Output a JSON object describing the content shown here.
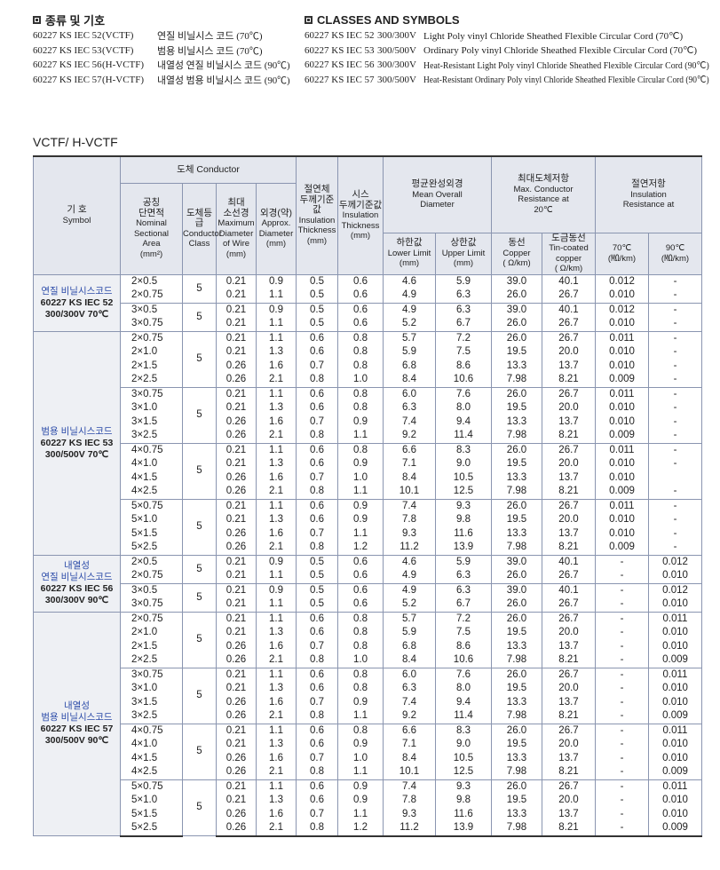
{
  "left": {
    "title": "종류 및 기호",
    "rows": [
      [
        "60227 KS IEC 52",
        "(VCTF)",
        "연질 비닐시스 코드 (70℃)"
      ],
      [
        "60227 KS IEC 53",
        "(VCTF)",
        "범용 비닐시스 코드 (70℃)"
      ],
      [
        "60227 KS IEC 56",
        "(H-VCTF)",
        "내열성 연질 비닐시스 코드 (90℃)"
      ],
      [
        "60227 KS IEC 57",
        "(H-VCTF)",
        "내열성 범용 비닐시스 코드 (90℃)"
      ]
    ]
  },
  "right": {
    "title": "CLASSES AND SYMBOLS",
    "rows": [
      [
        "60227 KS IEC 52",
        "300/300V",
        "Light Poly vinyl Chloride Sheathed Flexible Circular Cord (70℃)"
      ],
      [
        "60227 KS IEC 53",
        "300/500V",
        "Ordinary Poly vinyl Chloride Sheathed Flexible Circular Cord (70℃)"
      ],
      [
        "60227 KS IEC 56",
        "300/300V",
        "Heat-Resistant Light Poly vinyl Chloride Sheathed Flexible Circular Cord (90℃)"
      ],
      [
        "60227 KS IEC 57",
        "300/500V",
        "Heat-Resistant Ordinary Poly vinyl Chloride Sheathed Flexible Circular Cord (90℃)"
      ]
    ]
  },
  "table": {
    "caption": "VCTF/ H-VCTF",
    "header": {
      "symbol": [
        "기 호",
        "Symbol"
      ],
      "conductor": "도체 Conductor",
      "nominal": [
        "공칭",
        "단면적",
        "Nominal",
        "Sectional",
        "Area",
        "(mm²)"
      ],
      "class": [
        "도체등급",
        "Conductor",
        "Class"
      ],
      "maxwire": [
        "최대",
        "소선경",
        "Maximum",
        "Diameter",
        "of Wire",
        "(mm)"
      ],
      "approx": [
        "외경(약)",
        "Approx.",
        "Diameter",
        "(mm)"
      ],
      "insul": [
        "절연체",
        "두께기준값",
        "Insulation",
        "Thickness",
        "(mm)"
      ],
      "sheath": [
        "시스",
        "두께기준값",
        "Insulation",
        "Thickness",
        "(mm)"
      ],
      "mean": [
        "평균완성외경",
        "Mean Overall",
        "Diameter"
      ],
      "lower": [
        "하한값",
        "Lower Limit",
        "(mm)"
      ],
      "upper": [
        "상한값",
        "Upper Limit",
        "(mm)"
      ],
      "maxres": [
        "최대도체저항",
        "Max. Conductor",
        "Resistance at",
        "20℃"
      ],
      "copper": [
        "동선",
        "Copper",
        "( Ω/km)"
      ],
      "tin": [
        "도금동선",
        "Tin-coated",
        "copper",
        "( Ω/km)"
      ],
      "insres": [
        "절연저항",
        "Insulation",
        "Resistance at"
      ],
      "t70": [
        "70℃",
        "(㏁/km)"
      ],
      "t90": [
        "90℃",
        "(㏁/km)"
      ]
    },
    "groups": [
      {
        "symbol": [
          "연질 비닐시스코드",
          "60227 KS IEC 52",
          "300/300V  70℃"
        ],
        "blocks": [
          {
            "class": "5",
            "rows": [
              {
                "size": "2×0.5",
                "values": [
                  "0.21",
                  "0.9",
                  "0.5",
                  "0.6",
                  "4.6",
                  "5.9",
                  "39.0",
                  "40.1",
                  "0.012",
                  "-"
                ]
              },
              {
                "size": "2×0.75",
                "values": [
                  "0.21",
                  "1.1",
                  "0.5",
                  "0.6",
                  "4.9",
                  "6.3",
                  "26.0",
                  "26.7",
                  "0.010",
                  "-"
                ]
              }
            ]
          },
          {
            "class": "5",
            "rows": [
              {
                "size": "3×0.5",
                "values": [
                  "0.21",
                  "0.9",
                  "0.5",
                  "0.6",
                  "4.9",
                  "6.3",
                  "39.0",
                  "40.1",
                  "0.012",
                  "-"
                ]
              },
              {
                "size": "3×0.75",
                "values": [
                  "0.21",
                  "1.1",
                  "0.5",
                  "0.6",
                  "5.2",
                  "6.7",
                  "26.0",
                  "26.7",
                  "0.010",
                  "-"
                ]
              }
            ]
          }
        ]
      },
      {
        "symbol": [
          "범용 비닐시스코드",
          "60227 KS IEC 53",
          "300/500V  70℃"
        ],
        "blocks": [
          {
            "class": "5",
            "rows": [
              {
                "size": "2×0.75",
                "values": [
                  "0.21",
                  "1.1",
                  "0.6",
                  "0.8",
                  "5.7",
                  "7.2",
                  "26.0",
                  "26.7",
                  "0.011",
                  "-"
                ]
              },
              {
                "size": "2×1.0",
                "values": [
                  "0.21",
                  "1.3",
                  "0.6",
                  "0.8",
                  "5.9",
                  "7.5",
                  "19.5",
                  "20.0",
                  "0.010",
                  "-"
                ]
              },
              {
                "size": "2×1.5",
                "values": [
                  "0.26",
                  "1.6",
                  "0.7",
                  "0.8",
                  "6.8",
                  "8.6",
                  "13.3",
                  "13.7",
                  "0.010",
                  "-"
                ]
              },
              {
                "size": "2×2.5",
                "values": [
                  "0.26",
                  "2.1",
                  "0.8",
                  "1.0",
                  "8.4",
                  "10.6",
                  "7.98",
                  "8.21",
                  "0.009",
                  "-"
                ]
              }
            ]
          },
          {
            "class": "5",
            "rows": [
              {
                "size": "3×0.75",
                "values": [
                  "0.21",
                  "1.1",
                  "0.6",
                  "0.8",
                  "6.0",
                  "7.6",
                  "26.0",
                  "26.7",
                  "0.011",
                  "-"
                ]
              },
              {
                "size": "3×1.0",
                "values": [
                  "0.21",
                  "1.3",
                  "0.6",
                  "0.8",
                  "6.3",
                  "8.0",
                  "19.5",
                  "20.0",
                  "0.010",
                  "-"
                ]
              },
              {
                "size": "3×1.5",
                "values": [
                  "0.26",
                  "1.6",
                  "0.7",
                  "0.9",
                  "7.4",
                  "9.4",
                  "13.3",
                  "13.7",
                  "0.010",
                  "-"
                ]
              },
              {
                "size": "3×2.5",
                "values": [
                  "0.26",
                  "2.1",
                  "0.8",
                  "1.1",
                  "9.2",
                  "11.4",
                  "7.98",
                  "8.21",
                  "0.009",
                  "-"
                ]
              }
            ]
          },
          {
            "class": "5",
            "rows": [
              {
                "size": "4×0.75",
                "values": [
                  "0.21",
                  "1.1",
                  "0.6",
                  "0.8",
                  "6.6",
                  "8.3",
                  "26.0",
                  "26.7",
                  "0.011",
                  "-"
                ]
              },
              {
                "size": "4×1.0",
                "values": [
                  "0.21",
                  "1.3",
                  "0.6",
                  "0.9",
                  "7.1",
                  "9.0",
                  "19.5",
                  "20.0",
                  "0.010",
                  "-"
                ]
              },
              {
                "size": "4×1.5",
                "values": [
                  "0.26",
                  "1.6",
                  "0.7",
                  "1.0",
                  "8.4",
                  "10.5",
                  "13.3",
                  "13.7",
                  "0.010",
                  null
                ]
              },
              {
                "size": "4×2.5",
                "values": [
                  "0.26",
                  "2.1",
                  "0.8",
                  "1.1",
                  "10.1",
                  "12.5",
                  "7.98",
                  "8.21",
                  "0.009",
                  "-"
                ]
              }
            ]
          },
          {
            "class": "5",
            "rows": [
              {
                "size": "5×0.75",
                "values": [
                  "0.21",
                  "1.1",
                  "0.6",
                  "0.9",
                  "7.4",
                  "9.3",
                  "26.0",
                  "26.7",
                  "0.011",
                  "-"
                ]
              },
              {
                "size": "5×1.0",
                "values": [
                  "0.21",
                  "1.3",
                  "0.6",
                  "0.9",
                  "7.8",
                  "9.8",
                  "19.5",
                  "20.0",
                  "0.010",
                  "-"
                ]
              },
              {
                "size": "5×1.5",
                "values": [
                  "0.26",
                  "1.6",
                  "0.7",
                  "1.1",
                  "9.3",
                  "11.6",
                  "13.3",
                  "13.7",
                  "0.010",
                  "-"
                ]
              },
              {
                "size": "5×2.5",
                "values": [
                  "0.26",
                  "2.1",
                  "0.8",
                  "1.2",
                  "11.2",
                  "13.9",
                  "7.98",
                  "8.21",
                  "0.009",
                  "-"
                ]
              }
            ]
          }
        ]
      },
      {
        "symbol": [
          "내열성",
          "연질 비닐시스코드",
          "60227 KS IEC 56",
          "300/300V  90℃"
        ],
        "blocks": [
          {
            "class": "5",
            "rows": [
              {
                "size": "2×0.5",
                "values": [
                  "0.21",
                  "0.9",
                  "0.5",
                  "0.6",
                  "4.6",
                  "5.9",
                  "39.0",
                  "40.1",
                  "-",
                  "0.012"
                ]
              },
              {
                "size": "2×0.75",
                "values": [
                  "0.21",
                  "1.1",
                  "0.5",
                  "0.6",
                  "4.9",
                  "6.3",
                  "26.0",
                  "26.7",
                  "-",
                  "0.010"
                ]
              }
            ]
          },
          {
            "class": "5",
            "rows": [
              {
                "size": "3×0.5",
                "values": [
                  "0.21",
                  "0.9",
                  "0.5",
                  "0.6",
                  "4.9",
                  "6.3",
                  "39.0",
                  "40.1",
                  "-",
                  "0.012"
                ]
              },
              {
                "size": "3×0.75",
                "values": [
                  "0.21",
                  "1.1",
                  "0.5",
                  "0.6",
                  "5.2",
                  "6.7",
                  "26.0",
                  "26.7",
                  "-",
                  "0.010"
                ]
              }
            ]
          }
        ]
      },
      {
        "symbol": [
          "내열성",
          "범용 비닐시스코드",
          "60227 KS IEC 57",
          "300/500V  90℃"
        ],
        "blocks": [
          {
            "class": "5",
            "rows": [
              {
                "size": "2×0.75",
                "values": [
                  "0.21",
                  "1.1",
                  "0.6",
                  "0.8",
                  "5.7",
                  "7.2",
                  "26.0",
                  "26.7",
                  "-",
                  "0.011"
                ]
              },
              {
                "size": "2×1.0",
                "values": [
                  "0.21",
                  "1.3",
                  "0.6",
                  "0.8",
                  "5.9",
                  "7.5",
                  "19.5",
                  "20.0",
                  "-",
                  "0.010"
                ]
              },
              {
                "size": "2×1.5",
                "values": [
                  "0.26",
                  "1.6",
                  "0.7",
                  "0.8",
                  "6.8",
                  "8.6",
                  "13.3",
                  "13.7",
                  "-",
                  "0.010"
                ]
              },
              {
                "size": "2×2.5",
                "values": [
                  "0.26",
                  "2.1",
                  "0.8",
                  "1.0",
                  "8.4",
                  "10.6",
                  "7.98",
                  "8.21",
                  "-",
                  "0.009"
                ]
              }
            ]
          },
          {
            "class": "5",
            "rows": [
              {
                "size": "3×0.75",
                "values": [
                  "0.21",
                  "1.1",
                  "0.6",
                  "0.8",
                  "6.0",
                  "7.6",
                  "26.0",
                  "26.7",
                  "-",
                  "0.011"
                ]
              },
              {
                "size": "3×1.0",
                "values": [
                  "0.21",
                  "1.3",
                  "0.6",
                  "0.8",
                  "6.3",
                  "8.0",
                  "19.5",
                  "20.0",
                  "-",
                  "0.010"
                ]
              },
              {
                "size": "3×1.5",
                "values": [
                  "0.26",
                  "1.6",
                  "0.7",
                  "0.9",
                  "7.4",
                  "9.4",
                  "13.3",
                  "13.7",
                  "-",
                  "0.010"
                ]
              },
              {
                "size": "3×2.5",
                "values": [
                  "0.26",
                  "2.1",
                  "0.8",
                  "1.1",
                  "9.2",
                  "11.4",
                  "7.98",
                  "8.21",
                  "-",
                  "0.009"
                ]
              }
            ]
          },
          {
            "class": "5",
            "rows": [
              {
                "size": "4×0.75",
                "values": [
                  "0.21",
                  "1.1",
                  "0.6",
                  "0.8",
                  "6.6",
                  "8.3",
                  "26.0",
                  "26.7",
                  "-",
                  "0.011"
                ]
              },
              {
                "size": "4×1.0",
                "values": [
                  "0.21",
                  "1.3",
                  "0.6",
                  "0.9",
                  "7.1",
                  "9.0",
                  "19.5",
                  "20.0",
                  "-",
                  "0.010"
                ]
              },
              {
                "size": "4×1.5",
                "values": [
                  "0.26",
                  "1.6",
                  "0.7",
                  "1.0",
                  "8.4",
                  "10.5",
                  "13.3",
                  "13.7",
                  "-",
                  "0.010"
                ]
              },
              {
                "size": "4×2.5",
                "values": [
                  "0.26",
                  "2.1",
                  "0.8",
                  "1.1",
                  "10.1",
                  "12.5",
                  "7.98",
                  "8.21",
                  "-",
                  "0.009"
                ]
              }
            ]
          },
          {
            "class": "5",
            "rows": [
              {
                "size": "5×0.75",
                "values": [
                  "0.21",
                  "1.1",
                  "0.6",
                  "0.9",
                  "7.4",
                  "9.3",
                  "26.0",
                  "26.7",
                  "-",
                  "0.011"
                ]
              },
              {
                "size": "5×1.0",
                "values": [
                  "0.21",
                  "1.3",
                  "0.6",
                  "0.9",
                  "7.8",
                  "9.8",
                  "19.5",
                  "20.0",
                  "-",
                  "0.010"
                ]
              },
              {
                "size": "5×1.5",
                "values": [
                  "0.26",
                  "1.6",
                  "0.7",
                  "1.1",
                  "9.3",
                  "11.6",
                  "13.3",
                  "13.7",
                  "-",
                  "0.010"
                ]
              },
              {
                "size": "5×2.5",
                "values": [
                  "0.26",
                  "2.1",
                  "0.8",
                  "1.2",
                  "11.2",
                  "13.9",
                  "7.98",
                  "8.21",
                  "-",
                  "0.009"
                ]
              }
            ]
          }
        ]
      }
    ]
  }
}
